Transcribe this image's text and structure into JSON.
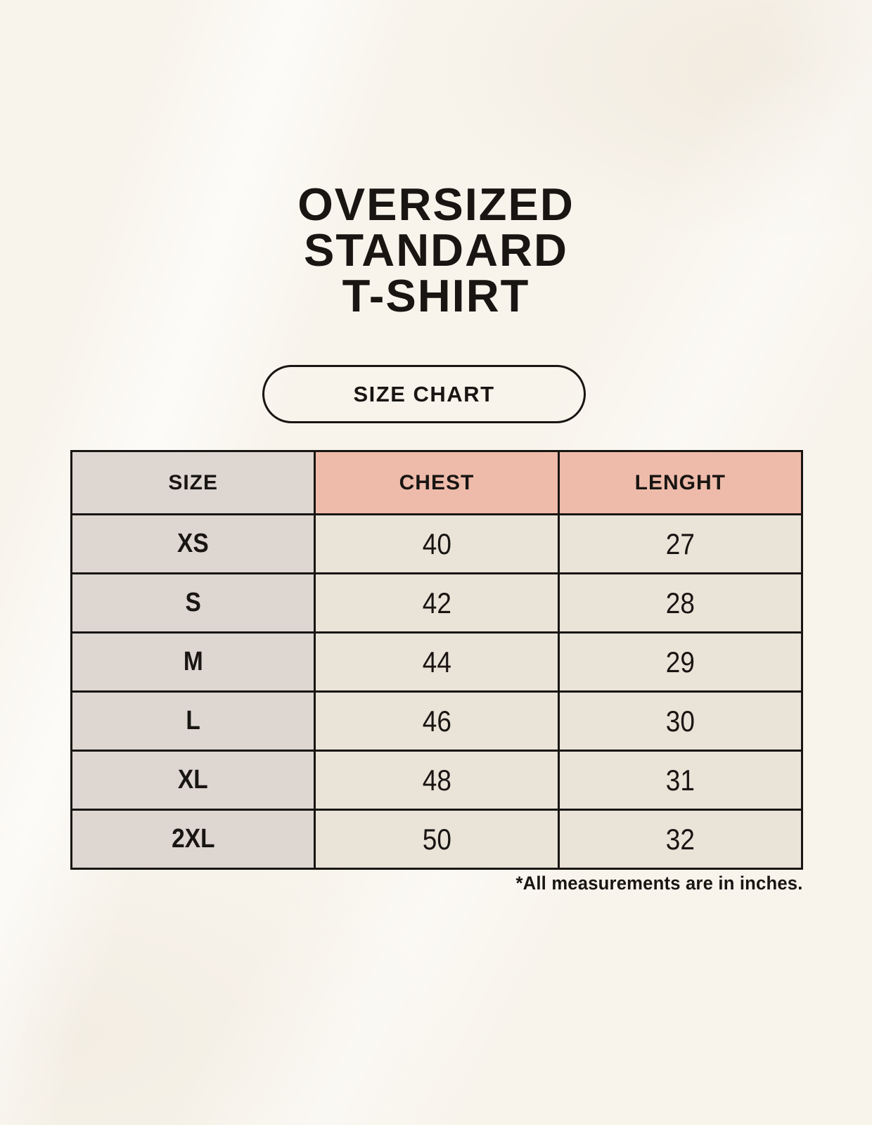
{
  "header": {
    "title_lines": [
      "OVERSIZED",
      "STANDARD",
      "T-SHIRT"
    ],
    "button_label": "SIZE CHART"
  },
  "chart_data": {
    "type": "table",
    "title": "OVERSIZED STANDARD T-SHIRT",
    "columns": [
      "SIZE",
      "CHEST",
      "LENGHT"
    ],
    "rows": [
      [
        "XS",
        "40",
        "27"
      ],
      [
        "S",
        "42",
        "28"
      ],
      [
        "M",
        "44",
        "29"
      ],
      [
        "L",
        "46",
        "30"
      ],
      [
        "XL",
        "48",
        "31"
      ],
      [
        "2XL",
        "50",
        "32"
      ]
    ],
    "units_note": "inches",
    "footnote": "*All measurements are in inches."
  },
  "colors": {
    "background": "#f8f4ec",
    "accent_cell": "#eebbaa",
    "gray_cell": "#ddd6d1",
    "beige_cell": "#eae3d8",
    "border": "#181512",
    "text": "#181512"
  }
}
